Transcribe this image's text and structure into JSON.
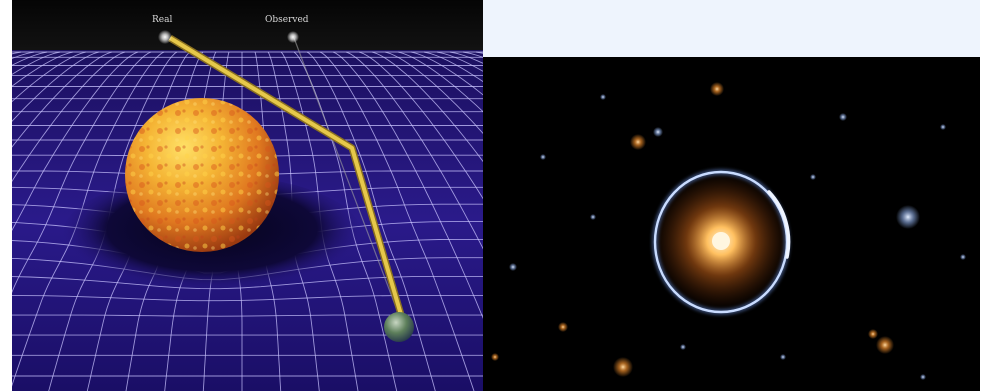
{
  "left_figure": {
    "labels": {
      "real": "Real",
      "observed": "Observed"
    },
    "colors": {
      "space": "#140a2a",
      "grid": "#c9c4ff",
      "sun": "#f2a12a",
      "light_ray": "#e6c84a",
      "earth": "#5d7f5b"
    }
  },
  "right_figure": {
    "colors": {
      "background": "#000000",
      "ring": "#a9c6ff",
      "core": "#ffb14d"
    }
  }
}
